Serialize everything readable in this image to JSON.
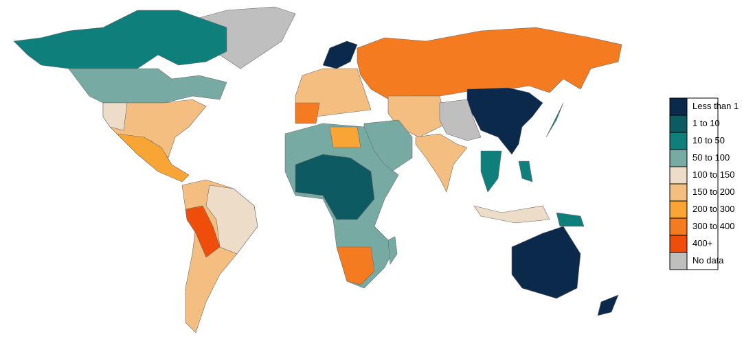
{
  "legend": {
    "items": [
      {
        "label": "Less than 1",
        "color": "#0b2a4b"
      },
      {
        "label": "1 to 10",
        "color": "#0e5a63"
      },
      {
        "label": "10 to 50",
        "color": "#0f7f7c"
      },
      {
        "label": "50 to 100",
        "color": "#76aaa3"
      },
      {
        "label": "100 to 150",
        "color": "#ecdcc8"
      },
      {
        "label": "150 to 200",
        "color": "#f3be80"
      },
      {
        "label": "200 to 300",
        "color": "#f9a535"
      },
      {
        "label": "300 to 400",
        "color": "#f47b20"
      },
      {
        "label": "400+",
        "color": "#ee4d0a"
      },
      {
        "label": "No data",
        "color": "#bfbfbf"
      }
    ]
  }
}
